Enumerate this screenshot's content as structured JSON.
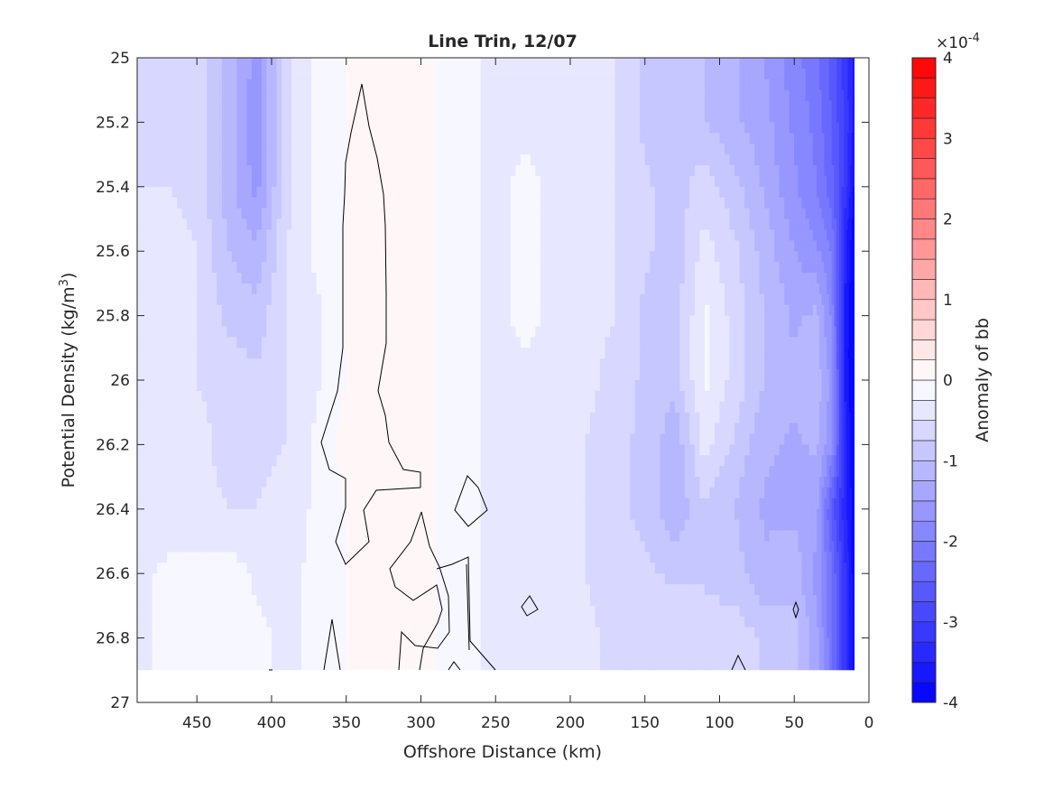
{
  "chart_data": {
    "type": "heatmap",
    "title": "Line Trin, 12/07",
    "xlabel": "Offshore Distance (km)",
    "ylabel": "Potential Density (kg/m",
    "ylabel_sup": "3",
    "ylabel_close": ")",
    "xlim": [
      490,
      0
    ],
    "ylim": [
      25,
      27
    ],
    "x_reversed": true,
    "y_reversed": true,
    "xticks": [
      450,
      400,
      350,
      300,
      250,
      200,
      150,
      100,
      50,
      0
    ],
    "xtick_labels": [
      "450",
      "400",
      "350",
      "300",
      "250",
      "200",
      "150",
      "100",
      "50",
      "0"
    ],
    "yticks": [
      25,
      25.2,
      25.4,
      25.6,
      25.8,
      26,
      26.2,
      26.4,
      26.6,
      26.8,
      27
    ],
    "ytick_labels": [
      "25",
      "25.2",
      "25.4",
      "25.6",
      "25.8",
      "26",
      "26.2",
      "26.4",
      "26.6",
      "26.8",
      "27"
    ],
    "colorbar": {
      "label": "Anomaly of bb",
      "exponent_label": "×10",
      "exponent_power": "-4",
      "range": [
        -4,
        4
      ],
      "ticks": [
        -4,
        -3,
        -2,
        -1,
        0,
        1,
        2,
        3,
        4
      ],
      "tick_labels": [
        "-4",
        "-3",
        "-2",
        "-1",
        "0",
        "1",
        "2",
        "3",
        "4"
      ],
      "levels": 32,
      "colormap": "blue-white-red",
      "low_color": "#0000ff",
      "mid_color": "#ffffff",
      "high_color": "#ff0000"
    },
    "data_extent": {
      "x_min": 10,
      "x_max": 490,
      "y_max_mid_section": 26.9,
      "y_max_nearshore_columns": 26.9
    },
    "grid_x": [
      490,
      470,
      450,
      430,
      410,
      390,
      370,
      350,
      330,
      310,
      290,
      270,
      250,
      230,
      210,
      190,
      170,
      150,
      130,
      110,
      90,
      70,
      50,
      35,
      25,
      15,
      10
    ],
    "grid_y": [
      25.0,
      25.2,
      25.4,
      25.6,
      25.8,
      26.0,
      26.2,
      26.4,
      26.6,
      26.8,
      26.9
    ],
    "anomaly_values": [
      [
        -0.5,
        -0.6,
        -0.6,
        -1.1,
        -1.6,
        -0.6,
        -0.2,
        0.0,
        0.0,
        0.0,
        0.0,
        -0.2,
        -0.3,
        -0.3,
        -0.4,
        -0.4,
        -0.5,
        -0.8,
        -0.9,
        -1.0,
        -1.2,
        -1.5,
        -1.9,
        -2.2,
        -2.6,
        -3.2,
        -3.6
      ],
      [
        -0.5,
        -0.6,
        -0.6,
        -1.1,
        -1.7,
        -0.6,
        -0.2,
        0.0,
        0.0,
        0.0,
        0.0,
        -0.2,
        -0.3,
        -0.3,
        -0.4,
        -0.4,
        -0.5,
        -0.8,
        -0.9,
        -1.0,
        -1.2,
        -1.4,
        -1.8,
        -2.1,
        -2.5,
        -3.1,
        -3.6
      ],
      [
        -0.5,
        -0.5,
        -0.6,
        -1.1,
        -1.6,
        -0.6,
        -0.2,
        0.0,
        0.0,
        0.0,
        0.0,
        -0.2,
        -0.3,
        -0.2,
        -0.3,
        -0.4,
        -0.5,
        -0.7,
        -0.9,
        -0.6,
        -0.9,
        -1.3,
        -1.7,
        -2.0,
        -2.4,
        -3.2,
        -3.8
      ],
      [
        -0.3,
        -0.4,
        -0.5,
        -1.0,
        -1.2,
        -0.5,
        -0.2,
        0.0,
        0.0,
        0.0,
        0.0,
        -0.2,
        -0.3,
        -0.2,
        -0.3,
        -0.4,
        -0.5,
        -0.7,
        -0.9,
        -0.4,
        -0.7,
        -1.1,
        -1.5,
        -1.7,
        -2.0,
        -3.6,
        -3.9
      ],
      [
        -0.3,
        -0.4,
        -0.5,
        -0.8,
        -0.9,
        -0.5,
        -0.3,
        0.0,
        0.0,
        0.0,
        0.0,
        -0.2,
        -0.3,
        -0.2,
        -0.3,
        -0.4,
        -0.5,
        -0.8,
        -0.9,
        -0.2,
        -0.6,
        -1.0,
        -1.3,
        -1.2,
        -1.8,
        -3.7,
        -3.9
      ],
      [
        -0.4,
        -0.5,
        -0.5,
        -0.6,
        -0.7,
        -0.5,
        -0.3,
        0.0,
        0.0,
        0.0,
        0.0,
        -0.2,
        -0.3,
        -0.3,
        -0.3,
        -0.4,
        -0.6,
        -0.8,
        -0.9,
        -0.2,
        -0.6,
        -1.0,
        -1.2,
        -1.1,
        -1.6,
        -3.7,
        -3.9
      ],
      [
        -0.5,
        -0.5,
        -0.4,
        -0.6,
        -0.6,
        -0.5,
        -0.2,
        0.1,
        0.0,
        0.0,
        0.0,
        -0.2,
        -0.3,
        -0.4,
        -0.4,
        -0.5,
        -0.7,
        -0.8,
        -1.2,
        -0.4,
        -0.8,
        -1.2,
        -1.3,
        -1.2,
        -1.7,
        -3.6,
        -3.9
      ],
      [
        -0.4,
        -0.4,
        -0.4,
        -0.5,
        -0.5,
        -0.4,
        -0.2,
        0.0,
        0.0,
        0.0,
        0.0,
        -0.2,
        -0.3,
        -0.4,
        -0.4,
        -0.5,
        -0.7,
        -0.8,
        -1.2,
        -0.8,
        -1.0,
        -1.3,
        -1.3,
        -1.4,
        -2.6,
        -3.5,
        -3.9
      ],
      [
        -0.3,
        -0.2,
        -0.2,
        -0.1,
        -0.3,
        -0.3,
        -0.2,
        0.0,
        0.0,
        0.0,
        0.0,
        -0.2,
        -0.3,
        -0.4,
        -0.4,
        -0.5,
        -0.7,
        -0.7,
        -0.8,
        -0.8,
        -0.9,
        -1.2,
        -1.1,
        -1.6,
        -2.2,
        -3.3,
        -3.9
      ],
      [
        -0.3,
        -0.2,
        -0.2,
        -0.1,
        -0.2,
        -0.3,
        -0.2,
        0.0,
        0.0,
        0.0,
        0.0,
        -0.2,
        -0.3,
        -0.3,
        -0.3,
        -0.4,
        -0.6,
        -0.6,
        -0.5,
        -0.6,
        -0.6,
        -0.8,
        -0.9,
        -1.4,
        -2.2,
        -3.3,
        -3.9
      ],
      [
        -0.3,
        -0.2,
        -0.2,
        -0.1,
        -0.2,
        -0.3,
        -0.2,
        0.0,
        0.0,
        0.0,
        0.0,
        -0.2,
        -0.3,
        -0.3,
        -0.3,
        -0.4,
        -0.6,
        -0.6,
        -0.5,
        -0.6,
        -0.6,
        -0.8,
        -0.9,
        -1.4,
        -2.2,
        -3.3,
        -3.9
      ]
    ]
  }
}
